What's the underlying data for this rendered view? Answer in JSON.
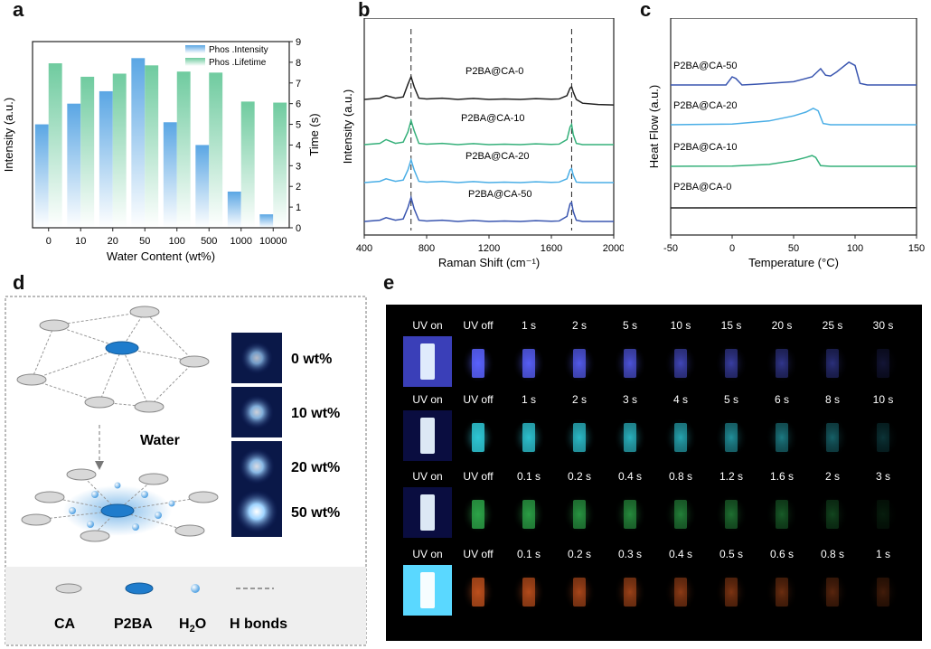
{
  "panels": {
    "a": "a",
    "b": "b",
    "c": "c",
    "d": "d",
    "e": "e"
  },
  "colors": {
    "blue": "#5aa6e4",
    "green": "#6fcb9f",
    "black": "#222222",
    "teal": "#35b07a",
    "lightblue": "#4aaee6",
    "navy": "#2c3e9e",
    "darkblue": "#3a56b0"
  },
  "chart_data": [
    {
      "type": "bar",
      "panel": "a",
      "categories": [
        "0",
        "10",
        "20",
        "50",
        "100",
        "500",
        "1000",
        "10000"
      ],
      "series": [
        {
          "name": "Phos .Intensity",
          "axis": "left",
          "values": [
            5.0,
            6.0,
            6.6,
            8.2,
            5.1,
            4.0,
            1.75,
            0.65
          ]
        },
        {
          "name": "Phos .Lifetime",
          "axis": "right",
          "values": [
            7.95,
            7.3,
            7.45,
            7.85,
            7.55,
            7.5,
            6.1,
            6.05
          ]
        }
      ],
      "xlabel": "Water Content (wt%)",
      "ylabel_left": "Intensity (a.u.)",
      "ylabel_right": "Time (s)",
      "ylim": [
        0,
        9
      ],
      "yticks_right": [
        "0",
        "1",
        "2",
        "3",
        "4",
        "5",
        "6",
        "7",
        "8",
        "9"
      ],
      "legend_position": "top-right"
    },
    {
      "type": "line",
      "panel": "b",
      "xlabel": "Raman Shift (cm⁻¹)",
      "ylabel": "Intensity (a.u.)",
      "xlim": [
        400,
        2000
      ],
      "xticks": [
        "400",
        "800",
        "1200",
        "1600",
        "2000"
      ],
      "reference_lines_x": [
        700,
        1730
      ],
      "series": [
        {
          "name": "P2BA@CA-0",
          "offset": 3.0,
          "x": [
            400,
            500,
            540,
            600,
            650,
            680,
            700,
            720,
            750,
            800,
            900,
            1000,
            1100,
            1200,
            1300,
            1400,
            1500,
            1600,
            1650,
            1700,
            1720,
            1730,
            1740,
            1760,
            1800,
            1900,
            2000
          ],
          "y": [
            0.0,
            0.05,
            0.15,
            0.05,
            0.1,
            0.6,
            0.9,
            0.5,
            0.05,
            0.02,
            0.05,
            0.0,
            0.04,
            0.0,
            0.02,
            0.0,
            0.03,
            0.01,
            0.02,
            0.15,
            0.45,
            0.5,
            0.3,
            0.0,
            -0.15,
            -0.2,
            -0.22
          ]
        },
        {
          "name": "P2BA@CA-10",
          "offset": 2.0,
          "x": [
            400,
            500,
            540,
            600,
            650,
            680,
            700,
            720,
            750,
            800,
            900,
            1000,
            1100,
            1200,
            1300,
            1400,
            1500,
            1600,
            1650,
            1700,
            1720,
            1730,
            1740,
            1760,
            1800,
            1900,
            2000
          ],
          "y": [
            0.0,
            0.05,
            0.2,
            0.05,
            0.1,
            0.5,
            0.95,
            0.55,
            0.05,
            0.02,
            0.05,
            0.0,
            0.04,
            0.0,
            0.02,
            0.0,
            0.03,
            0.01,
            0.02,
            0.2,
            0.7,
            0.8,
            0.4,
            0.05,
            0.0,
            0.0,
            0.0
          ]
        },
        {
          "name": "P2BA@CA-20",
          "offset": 1.0,
          "x": [
            400,
            500,
            540,
            600,
            650,
            680,
            700,
            720,
            750,
            800,
            900,
            1000,
            1100,
            1200,
            1300,
            1400,
            1500,
            1600,
            1650,
            1700,
            1720,
            1730,
            1740,
            1760,
            1800,
            1900,
            2000
          ],
          "y": [
            0.0,
            0.05,
            0.15,
            0.05,
            0.1,
            0.5,
            0.9,
            0.5,
            0.05,
            0.02,
            0.05,
            0.0,
            0.04,
            0.0,
            0.02,
            0.0,
            0.03,
            0.01,
            0.02,
            0.15,
            0.5,
            0.55,
            0.3,
            0.02,
            0.0,
            0.0,
            0.0
          ]
        },
        {
          "name": "P2BA@CA-50",
          "offset": 0.0,
          "x": [
            400,
            500,
            540,
            600,
            650,
            680,
            700,
            720,
            750,
            800,
            900,
            1000,
            1100,
            1200,
            1300,
            1400,
            1500,
            1600,
            1650,
            1700,
            1720,
            1730,
            1740,
            1760,
            1800,
            1900,
            2000
          ],
          "y": [
            0.0,
            0.05,
            0.15,
            0.05,
            0.1,
            0.55,
            0.95,
            0.5,
            0.05,
            0.02,
            0.05,
            0.0,
            0.04,
            0.0,
            0.02,
            0.0,
            0.03,
            0.01,
            0.02,
            0.2,
            0.7,
            0.75,
            0.4,
            0.05,
            0.0,
            0.0,
            0.0
          ]
        }
      ]
    },
    {
      "type": "line",
      "panel": "c",
      "xlabel": "Temperature (°C)",
      "ylabel": "Heat Flow (a.u.)",
      "xlim": [
        -50,
        150
      ],
      "xticks": [
        "-50",
        "0",
        "50",
        "100",
        "150"
      ],
      "series": [
        {
          "name": "P2BA@CA-50",
          "offset": 3.0,
          "x": [
            -50,
            -5,
            0,
            3,
            8,
            20,
            50,
            65,
            72,
            76,
            80,
            85,
            95,
            100,
            104,
            110,
            150
          ],
          "y": [
            0,
            0,
            0.5,
            0.4,
            0,
            0.05,
            0.2,
            0.5,
            1.0,
            0.6,
            0.55,
            0.8,
            1.4,
            1.2,
            0.1,
            0,
            0
          ]
        },
        {
          "name": "P2BA@CA-20",
          "offset": 2.0,
          "x": [
            -50,
            0,
            30,
            50,
            60,
            66,
            70,
            74,
            80,
            150
          ],
          "y": [
            0,
            0.05,
            0.3,
            0.7,
            1.0,
            1.3,
            1.1,
            0.1,
            0,
            0
          ]
        },
        {
          "name": "P2BA@CA-10",
          "offset": 1.0,
          "x": [
            -50,
            0,
            30,
            50,
            60,
            65,
            68,
            72,
            80,
            150
          ],
          "y": [
            0,
            0.02,
            0.15,
            0.45,
            0.7,
            0.85,
            0.7,
            0.05,
            0,
            0
          ]
        },
        {
          "name": "P2BA@CA-0",
          "offset": 0.0,
          "x": [
            -50,
            150
          ],
          "y": [
            0,
            0.03
          ]
        }
      ]
    }
  ],
  "panel_d": {
    "water_label": "Water",
    "samples": [
      "0 wt%",
      "10 wt%",
      "20 wt%",
      "50 wt%"
    ],
    "legend": {
      "ca": "CA",
      "p2ba": "P2BA",
      "h2o_main": "H",
      "h2o_sub": "2",
      "h2o_tail": "O",
      "hbonds": "H bonds"
    }
  },
  "panel_e": {
    "rows": [
      {
        "labels": [
          "UV on",
          "UV off",
          "1 s",
          "2 s",
          "5 s",
          "10 s",
          "15 s",
          "20 s",
          "25 s",
          "30 s"
        ],
        "color": "#5a62ff",
        "glow": [
          1.0,
          0.95,
          0.85,
          0.75,
          0.65,
          0.5,
          0.42,
          0.35,
          0.3,
          0.12
        ]
      },
      {
        "labels": [
          "UV on",
          "UV off",
          "1 s",
          "2 s",
          "3 s",
          "4 s",
          "5 s",
          "6 s",
          "8 s",
          "10 s"
        ],
        "color": "#2fc8d6",
        "glow": [
          1.0,
          0.95,
          0.85,
          0.78,
          0.7,
          0.62,
          0.5,
          0.4,
          0.3,
          0.15
        ]
      },
      {
        "labels": [
          "UV on",
          "UV off",
          "0.1 s",
          "0.2 s",
          "0.4 s",
          "0.8 s",
          "1.2 s",
          "1.6 s",
          "2 s",
          "3 s"
        ],
        "color": "#2ea84a",
        "glow": [
          1.0,
          0.9,
          0.8,
          0.7,
          0.62,
          0.55,
          0.45,
          0.35,
          0.25,
          0.1
        ]
      },
      {
        "labels": [
          "UV on",
          "UV off",
          "0.1 s",
          "0.2 s",
          "0.3 s",
          "0.4 s",
          "0.5 s",
          "0.6 s",
          "0.8 s",
          "1 s"
        ],
        "color": "#c4521e",
        "glow": [
          1.0,
          0.85,
          0.75,
          0.65,
          0.58,
          0.5,
          0.42,
          0.35,
          0.28,
          0.2
        ]
      }
    ]
  }
}
